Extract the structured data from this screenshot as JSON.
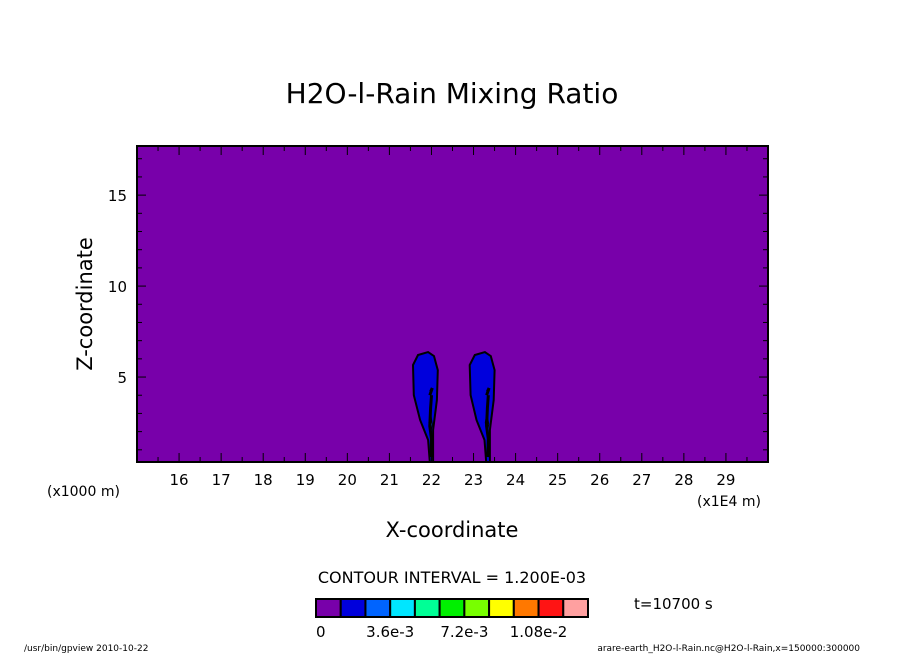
{
  "chart_data": {
    "type": "heatmap",
    "title": "H2O-l-Rain Mixing Ratio",
    "xlabel": "X-coordinate",
    "ylabel": "Z-coordinate",
    "x_unit_left": "(x1000 m)",
    "x_unit_right": "(x1E4 m)",
    "xlim": [
      15,
      30
    ],
    "ylim": [
      0.33,
      17.7
    ],
    "xticks": [
      16,
      17,
      18,
      19,
      20,
      21,
      22,
      23,
      24,
      25,
      26,
      27,
      28,
      29
    ],
    "yticks": [
      5,
      10,
      15
    ],
    "background_value": 0,
    "contour_interval_label": "CONTOUR INTERVAL = 1.200E-03",
    "time_label": "t=10700 s",
    "colorbar": {
      "levels": [
        0,
        0.0012,
        0.0024,
        0.0036,
        0.0048,
        0.006,
        0.0072,
        0.0084,
        0.0096,
        0.0108,
        0.012
      ],
      "colors": [
        "#7800aa",
        "#0000dc",
        "#0064ff",
        "#00e6ff",
        "#00ff96",
        "#00f000",
        "#78ff00",
        "#ffff00",
        "#ff7800",
        "#ff1414",
        "#ffa0a0"
      ],
      "tick_labels": [
        {
          "at": 0,
          "text": "0"
        },
        {
          "at": 3,
          "text": "3.6e-3"
        },
        {
          "at": 6,
          "text": "7.2e-3"
        },
        {
          "at": 9,
          "text": "1.08e-2"
        }
      ]
    },
    "regions": [
      {
        "level": 1,
        "points": [
          [
            21.96,
            0.33
          ],
          [
            21.92,
            1.54
          ],
          [
            21.73,
            2.64
          ],
          [
            21.58,
            4.01
          ],
          [
            21.56,
            5.66
          ],
          [
            21.68,
            6.21
          ],
          [
            21.92,
            6.37
          ],
          [
            22.06,
            6.15
          ],
          [
            22.15,
            5.38
          ],
          [
            22.13,
            3.74
          ],
          [
            22.04,
            2.09
          ],
          [
            22.04,
            0.33
          ]
        ]
      },
      {
        "level": 1,
        "points": [
          [
            23.3,
            0.33
          ],
          [
            23.26,
            1.54
          ],
          [
            23.07,
            2.64
          ],
          [
            22.93,
            4.01
          ],
          [
            22.91,
            5.66
          ],
          [
            23.03,
            6.21
          ],
          [
            23.27,
            6.37
          ],
          [
            23.41,
            6.15
          ],
          [
            23.5,
            5.38
          ],
          [
            23.48,
            3.74
          ],
          [
            23.39,
            2.09
          ],
          [
            23.39,
            0.33
          ]
        ]
      },
      {
        "level": 2,
        "points": [
          [
            21.98,
            1.9
          ],
          [
            21.94,
            2.5
          ],
          [
            21.98,
            3.0
          ],
          [
            22.02,
            2.4
          ]
        ]
      },
      {
        "level": 2,
        "points": [
          [
            23.32,
            1.9
          ],
          [
            23.28,
            2.5
          ],
          [
            23.32,
            3.0
          ],
          [
            23.36,
            2.4
          ]
        ]
      }
    ],
    "contour_lines": [
      [
        [
          21.99,
          0.6
        ],
        [
          22.0,
          1.6
        ],
        [
          21.96,
          2.3
        ],
        [
          21.98,
          3.3
        ],
        [
          22.0,
          4.0
        ]
      ],
      [
        [
          21.96,
          4.0
        ],
        [
          22.02,
          4.4
        ],
        [
          21.98,
          4.2
        ]
      ],
      [
        [
          23.34,
          0.6
        ],
        [
          23.35,
          1.6
        ],
        [
          23.31,
          2.3
        ],
        [
          23.33,
          3.3
        ],
        [
          23.35,
          4.0
        ]
      ],
      [
        [
          23.31,
          4.0
        ],
        [
          23.37,
          4.4
        ],
        [
          23.33,
          4.2
        ]
      ]
    ]
  },
  "footer": {
    "left": "/usr/bin/gpview  2010-10-22",
    "right": "arare-earth_H2O-l-Rain.nc@H2O-l-Rain,x=150000:300000"
  }
}
